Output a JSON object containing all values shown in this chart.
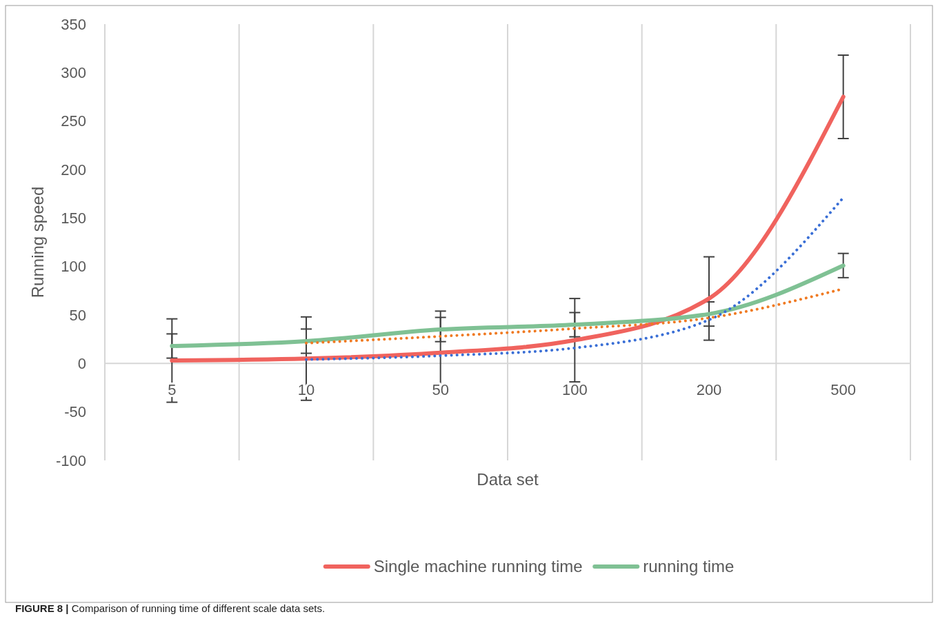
{
  "chart_data": {
    "type": "line",
    "xlabel": "Data set",
    "ylabel": "Running speed",
    "categories": [
      "5",
      "10",
      "50",
      "100",
      "200",
      "500"
    ],
    "series": [
      {
        "name": "Single machine running time",
        "color": "#f0635e",
        "values": [
          3,
          5,
          11,
          24,
          67,
          275
        ],
        "errors": [
          43,
          43,
          43,
          43,
          43,
          43
        ]
      },
      {
        "name": "running time",
        "color": "#7fc194",
        "values": [
          18,
          23,
          35,
          40,
          51,
          101
        ],
        "errors": [
          12.5,
          12.5,
          12.5,
          12.5,
          12.5,
          12.5
        ]
      },
      {
        "color": "#3a6fd6",
        "line_style": "dotted",
        "values": [
          null,
          4,
          8,
          16,
          45,
          171
        ]
      },
      {
        "color": "#f07a22",
        "line_style": "dotted",
        "values": [
          null,
          21,
          28,
          36,
          47,
          77
        ]
      }
    ],
    "ylim": [
      -100,
      350
    ],
    "yticks": [
      -100,
      -50,
      0,
      50,
      100,
      150,
      200,
      250,
      300,
      350
    ],
    "grid": "x",
    "legend": "bottom",
    "marker": "none",
    "line_style": "solid",
    "annotations": [
      "FIGURE 8 | Comparison of running time of different scale data sets."
    ]
  }
}
